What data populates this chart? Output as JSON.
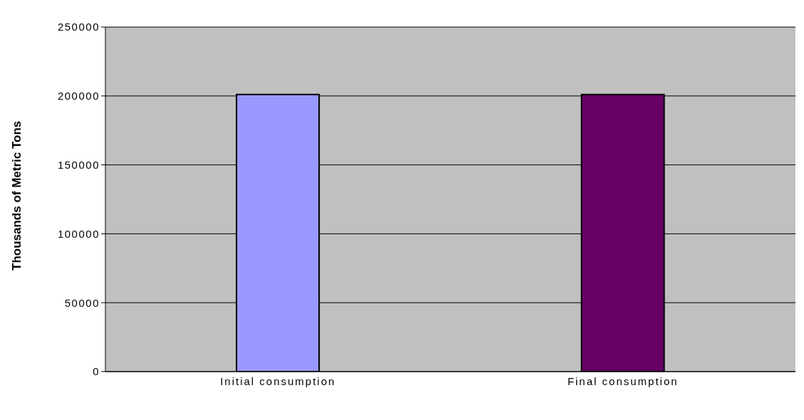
{
  "chart_data": {
    "type": "bar",
    "ylabel": "Thousands of Metric Tons",
    "categories": [
      "Initial consumption",
      "Final consumption"
    ],
    "values": [
      201000,
      201000
    ],
    "colors": [
      "#9999ff",
      "#660066"
    ],
    "ylim": [
      0,
      250000
    ],
    "yticks": [
      0,
      50000,
      100000,
      150000,
      200000,
      250000
    ],
    "grid": "y"
  }
}
